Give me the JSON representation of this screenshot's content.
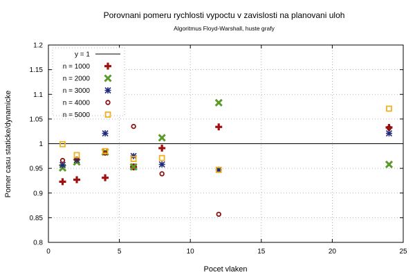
{
  "chart_data": {
    "type": "scatter",
    "title": "Porovnani pomeru rychlosti vypoctu v zavislosti na planovani uloh",
    "subtitle": "Algoritmus Floyd-Warshall, huste grafy",
    "xlabel": "Pocet vlaken",
    "ylabel": "Pomer casu staticke/dynamicke",
    "xlim": [
      0,
      25
    ],
    "ylim": [
      0.8,
      1.2
    ],
    "x_ticks": [
      0,
      5,
      10,
      15,
      20,
      25
    ],
    "y_ticks": [
      0.8,
      0.85,
      0.9,
      0.95,
      1,
      1.05,
      1.1,
      1.15,
      1.2
    ],
    "x_tick_labels": [
      "0",
      "5",
      "10",
      "15",
      "20",
      "25"
    ],
    "y_tick_labels": [
      "0.8",
      "0.85",
      "0.9",
      "0.95",
      "1",
      "1.05",
      "1.1",
      "1.15",
      "1.2"
    ],
    "grid": true,
    "legend_position": "top-left",
    "reference_line": {
      "name": "y = 1",
      "y": 1,
      "color": "#000000"
    },
    "series": [
      {
        "name": "n = 1000",
        "marker": "plus",
        "color": "#a01010",
        "points": [
          [
            1,
            0.923
          ],
          [
            2,
            0.927
          ],
          [
            4,
            0.931
          ],
          [
            6,
            0.953
          ],
          [
            8,
            0.991
          ],
          [
            12,
            1.034
          ],
          [
            24,
            1.033
          ]
        ]
      },
      {
        "name": "n = 2000",
        "marker": "cross",
        "color": "#5a9a28",
        "points": [
          [
            1,
            0.951
          ],
          [
            2,
            0.963
          ],
          [
            4,
            0.983
          ],
          [
            6,
            0.953
          ],
          [
            8,
            1.012
          ],
          [
            12,
            1.083
          ],
          [
            24,
            0.958
          ]
        ]
      },
      {
        "name": "n = 3000",
        "marker": "star",
        "color": "#1f2a7a",
        "points": [
          [
            1,
            0.957
          ],
          [
            2,
            0.967
          ],
          [
            4,
            1.021
          ],
          [
            6,
            0.975
          ],
          [
            8,
            0.958
          ],
          [
            12,
            0.947
          ],
          [
            24,
            1.021
          ]
        ]
      },
      {
        "name": "n = 4000",
        "marker": "circle",
        "color": "#8b1010",
        "points": [
          [
            1,
            0.966
          ],
          [
            2,
            0.969
          ],
          [
            4,
            0.981
          ],
          [
            6,
            1.035
          ],
          [
            8,
            0.939
          ],
          [
            12,
            0.857
          ],
          [
            24,
            1.032
          ]
        ]
      },
      {
        "name": "n = 5000",
        "marker": "square",
        "color": "#f0b020",
        "points": [
          [
            1,
            0.999
          ],
          [
            2,
            0.977
          ],
          [
            4,
            0.985
          ],
          [
            6,
            0.969
          ],
          [
            8,
            0.971
          ],
          [
            12,
            0.947
          ],
          [
            24,
            1.071
          ]
        ]
      }
    ]
  }
}
